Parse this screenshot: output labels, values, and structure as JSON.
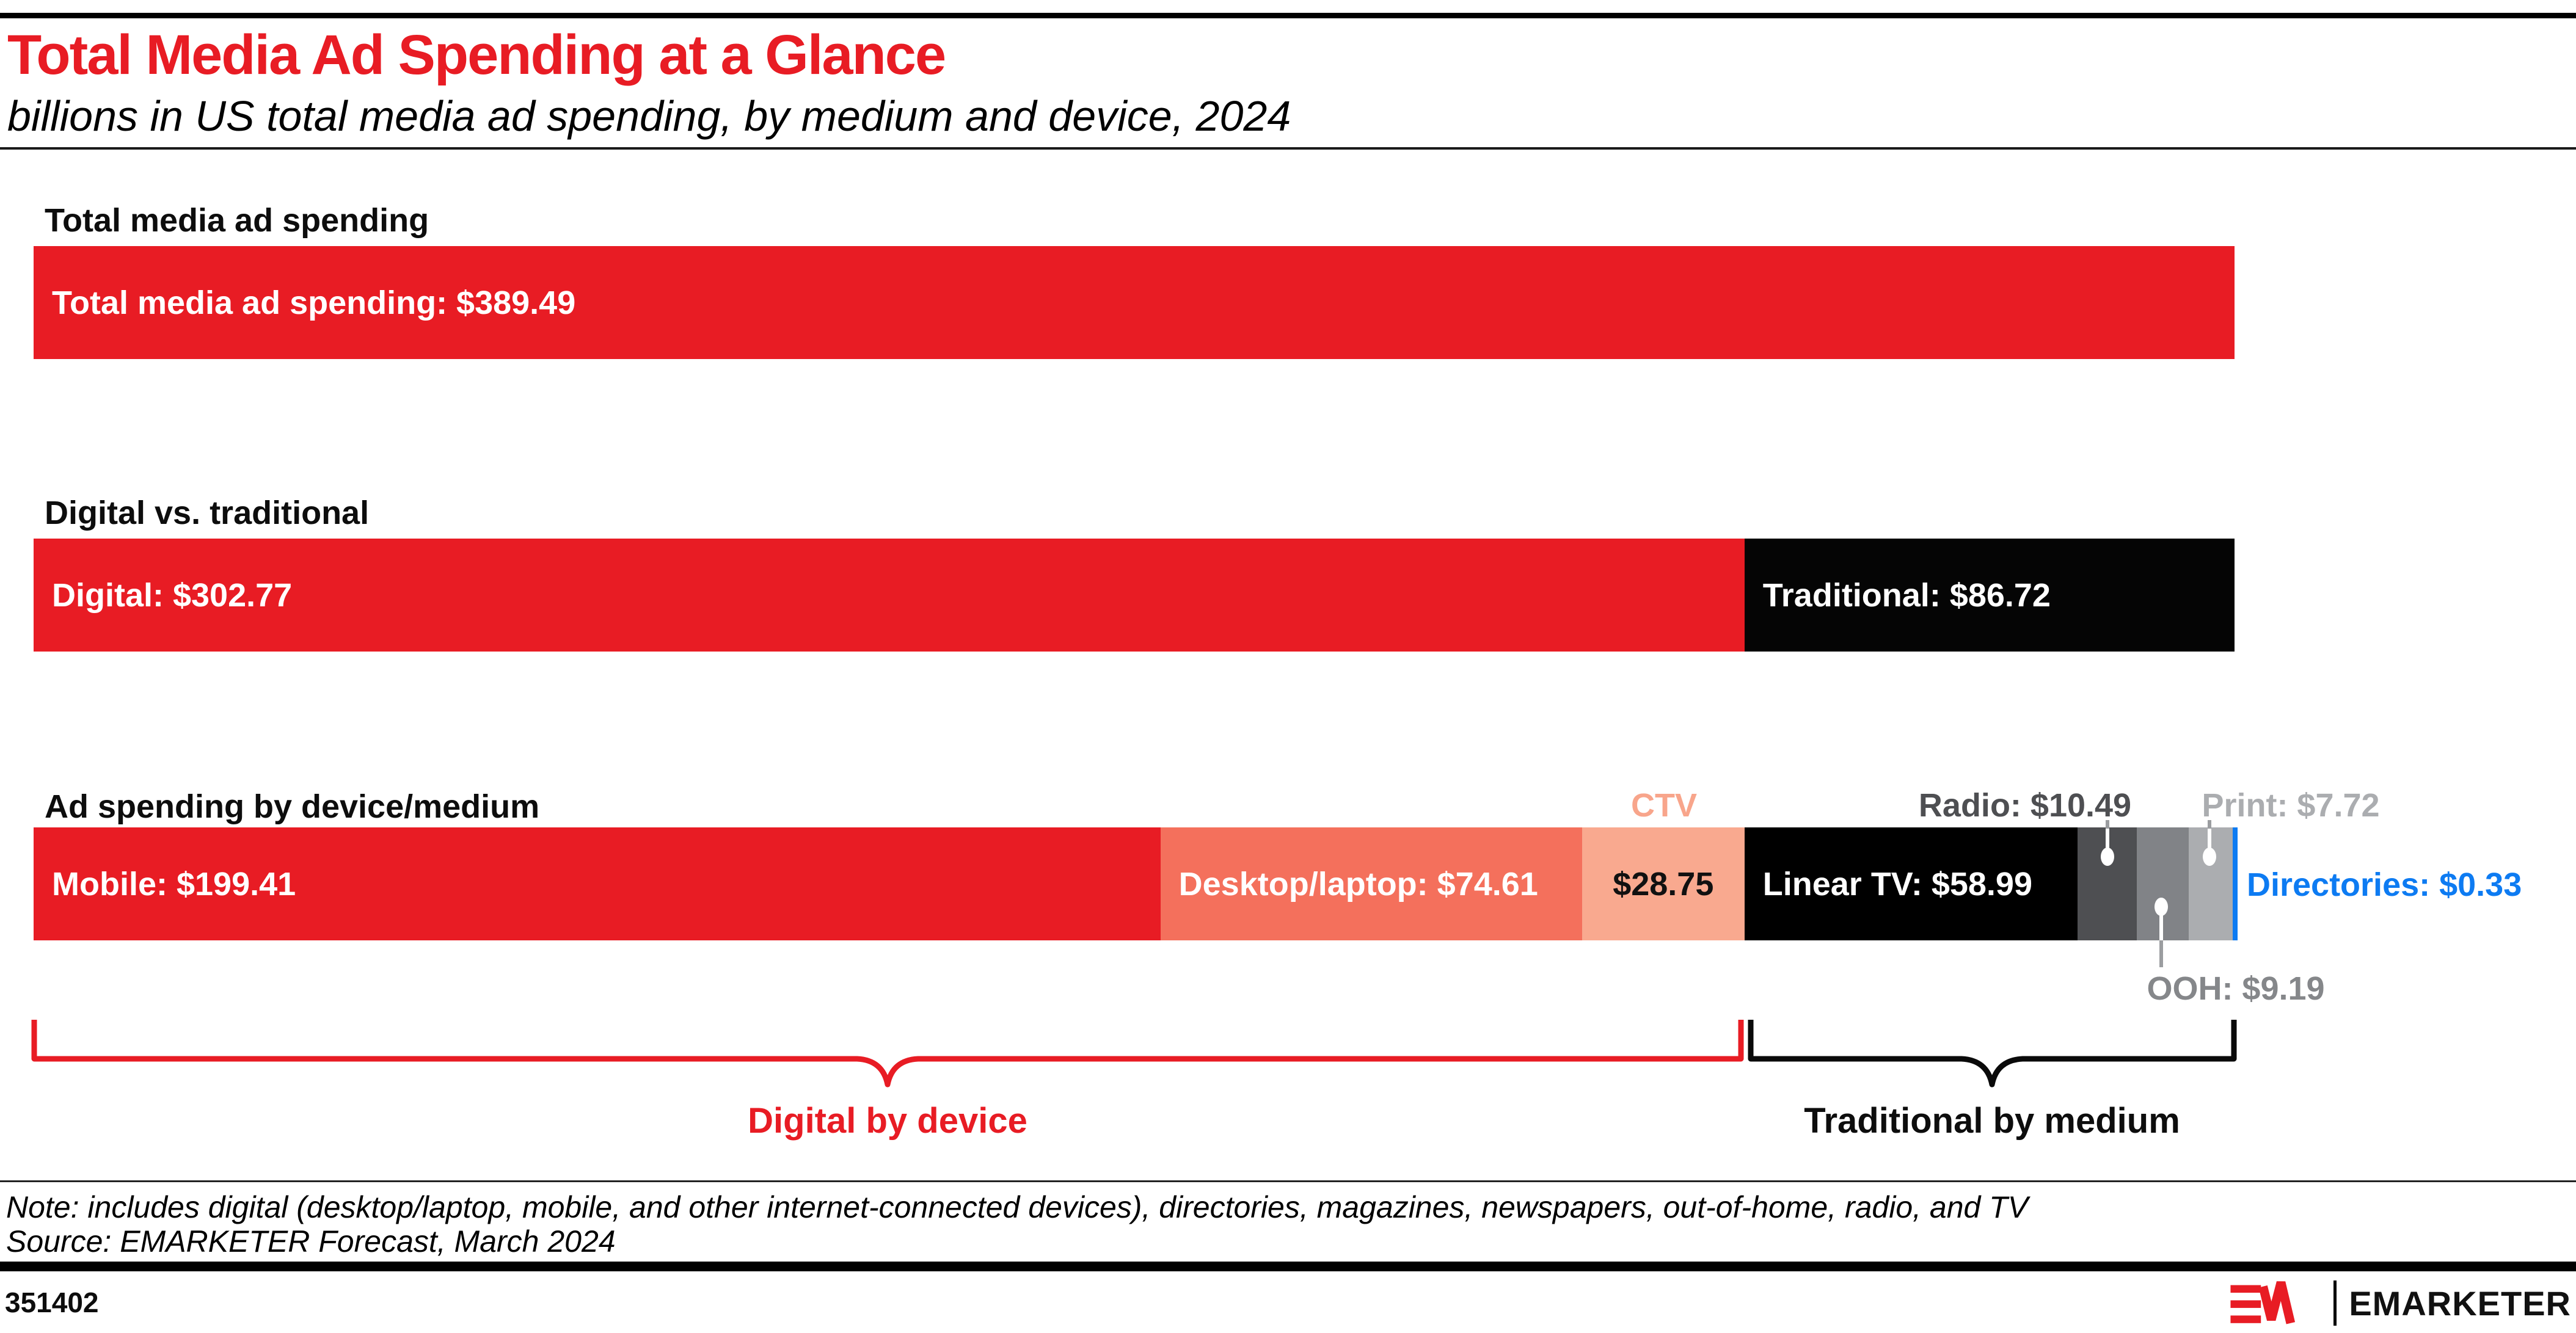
{
  "header": {
    "title": "Total Media Ad Spending at a Glance",
    "subtitle": "billions in US total media ad spending, by medium and device, 2024"
  },
  "chart_data": {
    "type": "bar",
    "title": "Total Media Ad Spending at a Glance",
    "subtitle": "billions in US total media ad spending, by medium and device, 2024",
    "unit": "billions of US dollars",
    "axis_total": 389.49,
    "rows": [
      {
        "section_label": "Total media ad spending",
        "segments": [
          {
            "label": "Total media ad spending",
            "value": 389.49,
            "display": "Total media ad spending: $389.49",
            "color": "#e81c24",
            "text_color": "#ffffff",
            "label_position": "inside"
          }
        ]
      },
      {
        "section_label": "Digital vs. traditional",
        "segments": [
          {
            "label": "Digital",
            "value": 302.77,
            "display": "Digital: $302.77",
            "color": "#e81c24",
            "text_color": "#ffffff",
            "label_position": "inside"
          },
          {
            "label": "Traditional",
            "value": 86.72,
            "display": "Traditional: $86.72",
            "color": "#050505",
            "text_color": "#ffffff",
            "label_position": "inside"
          }
        ]
      },
      {
        "section_label": "Ad spending by device/medium",
        "segments": [
          {
            "label": "Mobile",
            "value": 199.41,
            "display": "Mobile: $199.41",
            "color": "#e81c24",
            "text_color": "#ffffff",
            "label_position": "inside"
          },
          {
            "label": "Desktop/laptop",
            "value": 74.61,
            "display": "Desktop/laptop: $74.61",
            "color": "#f4705c",
            "text_color": "#ffffff",
            "label_position": "inside"
          },
          {
            "label": "CTV",
            "value": 28.75,
            "display": "$28.75",
            "callout": "CTV",
            "color": "#f9a98f",
            "text_color": "#111111",
            "label_position": "inside-dark",
            "callout_position": "above"
          },
          {
            "label": "Linear TV",
            "value": 58.99,
            "display": "Linear TV: $58.99",
            "color": "#000000",
            "text_color": "#ffffff",
            "label_position": "inside"
          },
          {
            "label": "Radio",
            "value": 10.49,
            "display": "Radio: $10.49",
            "color": "#4e4f52",
            "label_position": "above-lollipop"
          },
          {
            "label": "OOH",
            "value": 9.19,
            "display": "OOH: $9.19",
            "color": "#818387",
            "label_position": "below-lollipop"
          },
          {
            "label": "Print",
            "value": 7.72,
            "display": "Print: $7.72",
            "color": "#abadb0",
            "label_position": "above-lollipop"
          },
          {
            "label": "Directories",
            "value": 0.33,
            "display": "Directories: $0.33",
            "color": "#0d7bf2",
            "label_position": "right"
          }
        ]
      }
    ],
    "braces": [
      {
        "label": "Digital by device",
        "color": "#e81c24",
        "covers": [
          "Mobile",
          "Desktop/laptop",
          "CTV"
        ]
      },
      {
        "label": "Traditional by medium",
        "color": "#0a0a0a",
        "covers": [
          "Linear TV",
          "Radio",
          "OOH",
          "Print",
          "Directories"
        ]
      }
    ],
    "legend_position": "none",
    "grid": false
  },
  "footer": {
    "note": "Note: includes digital (desktop/laptop, mobile, and other internet-connected devices), directories, magazines, newspapers, out-of-home, radio, and TV",
    "source": "Source: EMARKETER Forecast, March 2024",
    "chart_id": "351402",
    "logo_text": "EMARKETER"
  }
}
